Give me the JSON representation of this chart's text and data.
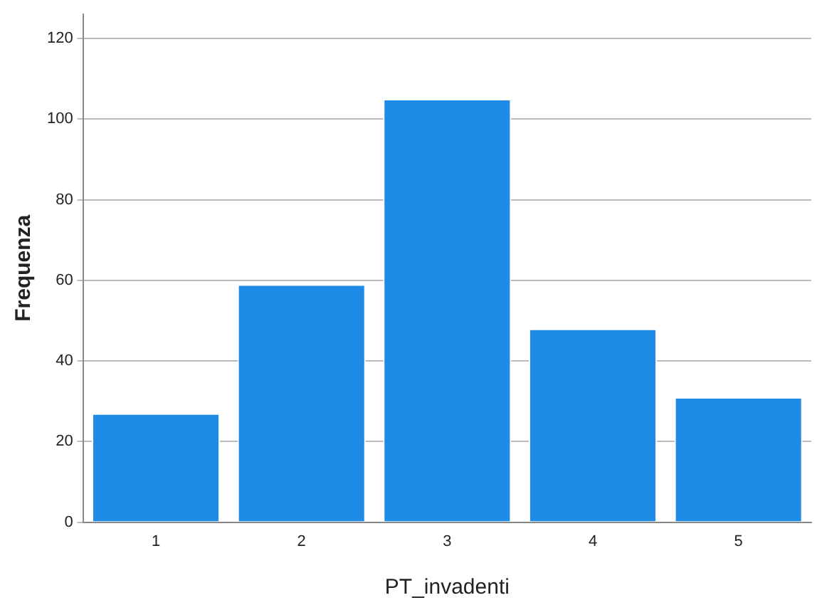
{
  "chart_data": {
    "type": "bar",
    "xlabel": "PT_invadenti",
    "ylabel": "Frequenza",
    "categories": [
      "1",
      "2",
      "3",
      "4",
      "5"
    ],
    "values": [
      27,
      59,
      105,
      48,
      31
    ],
    "color": "#1e8ce6",
    "ylim": [
      0,
      126
    ],
    "yticks": [
      0,
      20,
      40,
      60,
      80,
      100,
      120
    ],
    "grid": "y",
    "legend": false
  }
}
